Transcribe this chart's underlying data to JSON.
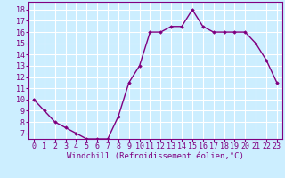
{
  "x": [
    0,
    1,
    2,
    3,
    4,
    5,
    6,
    7,
    8,
    9,
    10,
    11,
    12,
    13,
    14,
    15,
    16,
    17,
    18,
    19,
    20,
    21,
    22,
    23
  ],
  "y": [
    10,
    9,
    8,
    7.5,
    7,
    6.5,
    6.5,
    6.5,
    8.5,
    11.5,
    13,
    16,
    16,
    16.5,
    16.5,
    18,
    16.5,
    16,
    16,
    16,
    16,
    15,
    13.5,
    11.5
  ],
  "line_color": "#800080",
  "marker": "D",
  "marker_size": 1.8,
  "linewidth": 1.0,
  "xlabel": "Windchill (Refroidissement éolien,°C)",
  "ylabel_ticks": [
    7,
    8,
    9,
    10,
    11,
    12,
    13,
    14,
    15,
    16,
    17,
    18
  ],
  "ylim": [
    6.5,
    18.7
  ],
  "xlim": [
    -0.5,
    23.5
  ],
  "bg_color": "#cceeff",
  "grid_color": "#ffffff",
  "tick_label_color": "#800080",
  "xlabel_color": "#800080",
  "xlabel_fontsize": 6.5,
  "tick_fontsize": 6.0
}
